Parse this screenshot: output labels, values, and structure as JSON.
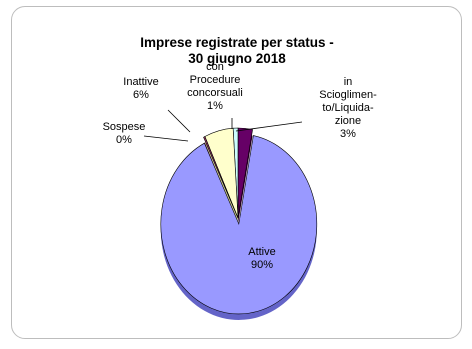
{
  "chart_data": {
    "type": "pie",
    "title": "Imprese registrate per status -\n30 giugno 2018",
    "labels": [
      [
        "Attive",
        "90%"
      ],
      [
        "in",
        "Scioglimen-",
        "to/Liquida-",
        "zione",
        "3%"
      ],
      [
        "con",
        "Procedure",
        "concorsuali",
        "1%"
      ],
      [
        "Inattive",
        "6%"
      ],
      [
        "Sospese",
        "0%"
      ]
    ],
    "slices": [
      {
        "name": "Attive",
        "value": 90,
        "color": "#9999ff",
        "side": "#6464c8"
      },
      {
        "name": "in Scioglimento/Liquidazione",
        "value": 3,
        "color": "#660066",
        "side": "#3d003d"
      },
      {
        "name": "con Procedure concorsuali",
        "value": 1,
        "color": "#ccffff",
        "side": "#8fb8b8"
      },
      {
        "name": "Inattive",
        "value": 6,
        "color": "#ffffcc",
        "side": "#c8c890"
      },
      {
        "name": "Sospese",
        "value": 0.3,
        "color": "#993366",
        "side": "#662244"
      }
    ],
    "exploded": "Attive",
    "legend": "none"
  }
}
